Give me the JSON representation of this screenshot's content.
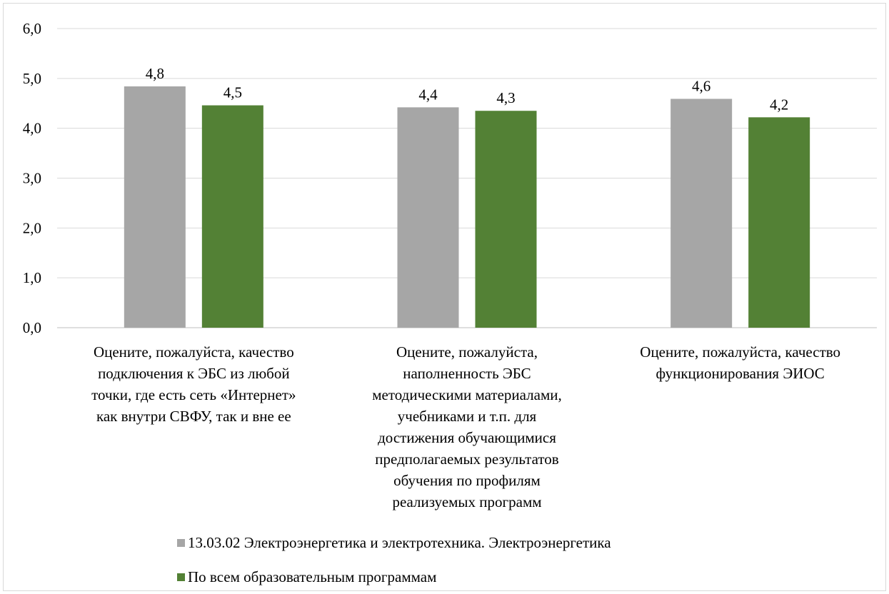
{
  "chart_data": {
    "type": "bar",
    "categories": [
      "Оцените, пожалуйста, качество подключения к ЭБС из любой точки, где есть сеть «Интернет» как внутри СВФУ, так и вне ее",
      "Оцените, пожалуйста, наполненность ЭБС методическими материалами, учебниками и т.п. для достижения обучающимися предполагаемых результатов обучения по профилям реализуемых программ",
      "Оцените, пожалуйста, качество функционирования ЭИОС"
    ],
    "category_lines": [
      [
        "Оцените, пожалуйста, качество",
        "подключения к ЭБС из любой",
        "точки, где есть сеть «Интернет»",
        "как внутри СВФУ, так и вне ее"
      ],
      [
        "Оцените, пожалуйста,",
        "наполненность ЭБС",
        "методическими материалами,",
        "учебниками и т.п. для",
        "достижения обучающимися",
        "предполагаемых результатов",
        "обучения по профилям",
        "реализуемых программ"
      ],
      [
        "Оцените, пожалуйста, качество",
        "функционирования ЭИОС"
      ]
    ],
    "series": [
      {
        "name": "13.03.02 Электроэнергетика и электротехника. Электроэнергетика",
        "values": [
          4.84,
          4.42,
          4.59
        ],
        "labels": [
          "4,8",
          "4,4",
          "4,6"
        ],
        "color": "#a6a6a6"
      },
      {
        "name": "По всем образовательным программам",
        "values": [
          4.46,
          4.35,
          4.22
        ],
        "labels": [
          "4,5",
          "4,3",
          "4,2"
        ],
        "color": "#538135"
      }
    ],
    "ylim": [
      0,
      6
    ],
    "yticks": [
      "0,0",
      "1,0",
      "2,0",
      "3,0",
      "4,0",
      "5,0",
      "6,0"
    ],
    "grid": true,
    "legend_position": "bottom",
    "title": "",
    "xlabel": "",
    "ylabel": ""
  }
}
